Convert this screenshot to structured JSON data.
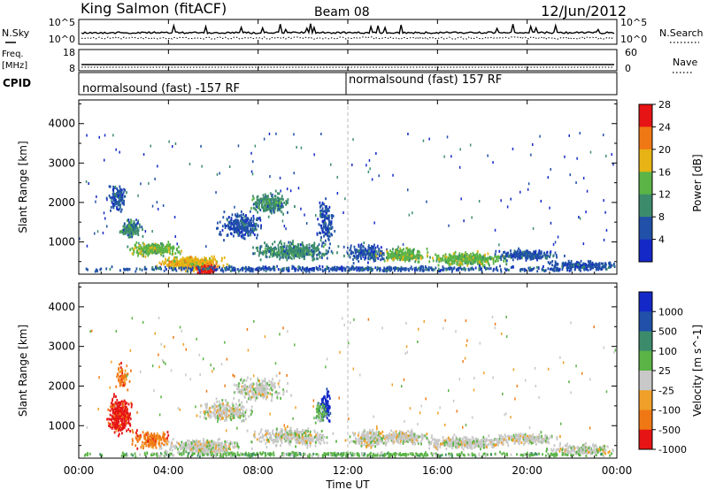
{
  "header": {
    "title": "King Salmon (fitACF)",
    "beam": "Beam 08",
    "date": "12/Jun/2012"
  },
  "noise_panel": {
    "left_label": "N.Sky",
    "right_label": "N.Search",
    "left_ticks": [
      "10^5",
      "10^0"
    ],
    "right_ticks": [
      "10^5",
      "10^0"
    ]
  },
  "freq_panel": {
    "left_label_1": "Freq.",
    "left_label_2": "[MHz]",
    "right_label": "Nave",
    "left_ticks": [
      "18",
      "8"
    ],
    "right_ticks": [
      "60",
      "0"
    ]
  },
  "cpid_panel": {
    "label": "CPID",
    "segments": [
      "normalsound (fast) -157 RF",
      "normalsound (fast) 157 RF"
    ]
  },
  "chart_data": [
    {
      "type": "heatmap",
      "name": "power",
      "ylabel": "Slant Range [km]",
      "yticks": [
        1000,
        2000,
        3000,
        4000
      ],
      "ylim": [
        180,
        4600
      ],
      "xlim_hours": [
        0,
        24
      ],
      "colorbar_label": "Power [dB]",
      "colorbar_ticks": [
        "4",
        "8",
        "12",
        "16",
        "20",
        "24",
        "28"
      ],
      "colorbar_colors": [
        "#1428c8",
        "#2050a8",
        "#3c8c6c",
        "#5ab446",
        "#e6b414",
        "#f07814",
        "#e61414"
      ],
      "blobs": [
        {
          "t": 1.7,
          "r": 2100,
          "dt": 0.35,
          "dr": 350,
          "n": 140,
          "lvl": 1
        },
        {
          "t": 2.3,
          "r": 1300,
          "dt": 0.4,
          "dr": 200,
          "n": 160,
          "lvl": 2
        },
        {
          "t": 3.4,
          "r": 800,
          "dt": 1.0,
          "dr": 150,
          "n": 300,
          "lvl": 3
        },
        {
          "t": 5.0,
          "r": 450,
          "dt": 1.2,
          "dr": 160,
          "n": 420,
          "lvl": 4
        },
        {
          "t": 5.7,
          "r": 280,
          "dt": 0.4,
          "dr": 90,
          "n": 160,
          "lvl": 6
        },
        {
          "t": 7.2,
          "r": 1400,
          "dt": 0.9,
          "dr": 300,
          "n": 260,
          "lvl": 1
        },
        {
          "t": 8.5,
          "r": 1950,
          "dt": 0.8,
          "dr": 250,
          "n": 240,
          "lvl": 2
        },
        {
          "t": 9.5,
          "r": 750,
          "dt": 1.6,
          "dr": 200,
          "n": 420,
          "lvl": 2
        },
        {
          "t": 11.0,
          "r": 1500,
          "dt": 0.35,
          "dr": 500,
          "n": 140,
          "lvl": 1
        },
        {
          "t": 12.8,
          "r": 700,
          "dt": 0.8,
          "dr": 200,
          "n": 200,
          "lvl": 1
        },
        {
          "t": 14.5,
          "r": 650,
          "dt": 1.0,
          "dr": 150,
          "n": 260,
          "lvl": 3
        },
        {
          "t": 17.3,
          "r": 550,
          "dt": 1.6,
          "dr": 150,
          "n": 360,
          "lvl": 3
        },
        {
          "t": 20.0,
          "r": 650,
          "dt": 1.2,
          "dr": 120,
          "n": 220,
          "lvl": 1
        },
        {
          "t": 22.5,
          "r": 380,
          "dt": 1.5,
          "dr": 120,
          "n": 220,
          "lvl": 1
        },
        {
          "t": 12.0,
          "r": 300,
          "dt": 12.0,
          "dr": 60,
          "n": 600,
          "lvl": 1
        }
      ]
    },
    {
      "type": "heatmap",
      "name": "velocity",
      "ylabel": "Slant Range [km]",
      "yticks": [
        1000,
        2000,
        3000,
        4000
      ],
      "ylim": [
        180,
        4600
      ],
      "xlim_hours": [
        0,
        24
      ],
      "xticks": [
        "00:00",
        "04:00",
        "08:00",
        "12:00",
        "16:00",
        "20:00",
        "00:00"
      ],
      "xlabel": "Time UT",
      "colorbar_label": "Velocity [m s^-1]",
      "colorbar_ticks": [
        "1000",
        "500",
        "100",
        "25",
        "-25",
        "-100",
        "-500",
        "-1000"
      ],
      "colorbar_colors": [
        "#1428c8",
        "#2050a8",
        "#3c8c6c",
        "#5ab446",
        "#c8c8c8",
        "#f0a028",
        "#f07814",
        "#e61414"
      ],
      "blobs": [
        {
          "t": 1.8,
          "r": 1250,
          "dt": 0.45,
          "dr": 400,
          "n": 300,
          "lvl": 7
        },
        {
          "t": 1.9,
          "r": 2200,
          "dt": 0.3,
          "dr": 300,
          "n": 60,
          "lvl": 6
        },
        {
          "t": 3.2,
          "r": 650,
          "dt": 0.8,
          "dr": 200,
          "n": 160,
          "lvl": 6
        },
        {
          "t": 5.5,
          "r": 450,
          "dt": 1.6,
          "dr": 170,
          "n": 420,
          "lvl": 4
        },
        {
          "t": 6.5,
          "r": 1350,
          "dt": 1.2,
          "dr": 250,
          "n": 260,
          "lvl": 4
        },
        {
          "t": 8.0,
          "r": 1900,
          "dt": 1.0,
          "dr": 250,
          "n": 260,
          "lvl": 4
        },
        {
          "t": 9.5,
          "r": 700,
          "dt": 1.6,
          "dr": 200,
          "n": 360,
          "lvl": 4
        },
        {
          "t": 11.0,
          "r": 1500,
          "dt": 0.25,
          "dr": 350,
          "n": 90,
          "lvl": 0
        },
        {
          "t": 10.8,
          "r": 1300,
          "dt": 0.3,
          "dr": 250,
          "n": 60,
          "lvl": 3
        },
        {
          "t": 13.0,
          "r": 650,
          "dt": 0.9,
          "dr": 200,
          "n": 220,
          "lvl": 4
        },
        {
          "t": 14.5,
          "r": 700,
          "dt": 1.0,
          "dr": 150,
          "n": 240,
          "lvl": 4
        },
        {
          "t": 17.3,
          "r": 550,
          "dt": 1.7,
          "dr": 150,
          "n": 360,
          "lvl": 4
        },
        {
          "t": 20.0,
          "r": 650,
          "dt": 1.2,
          "dr": 120,
          "n": 220,
          "lvl": 4
        },
        {
          "t": 22.5,
          "r": 380,
          "dt": 1.5,
          "dr": 120,
          "n": 220,
          "lvl": 4
        },
        {
          "t": 12.0,
          "r": 260,
          "dt": 12.0,
          "dr": 50,
          "n": 500,
          "lvl": 3
        }
      ]
    }
  ]
}
